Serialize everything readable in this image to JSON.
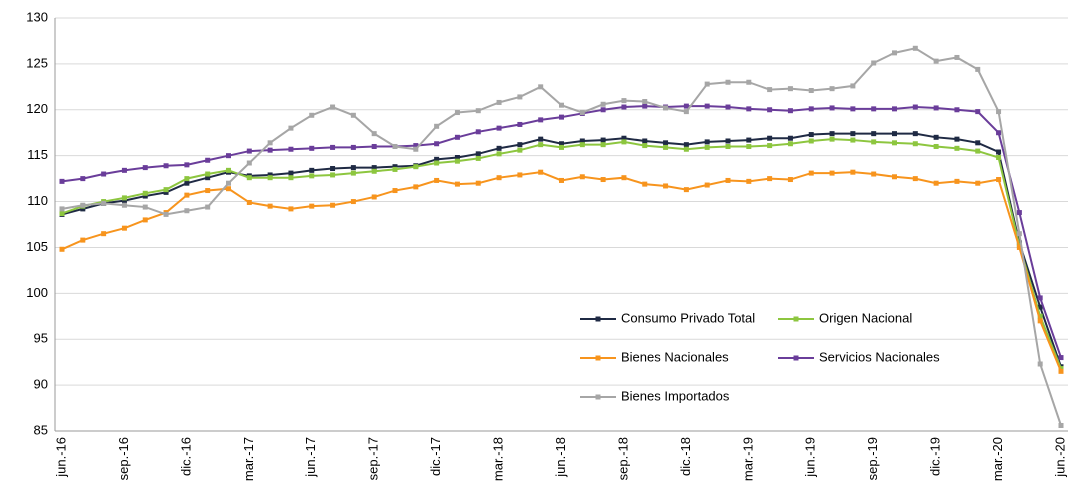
{
  "chart_data": {
    "type": "line",
    "categories": [
      "jun.-16",
      null,
      null,
      "sep.-16",
      null,
      null,
      "dic.-16",
      null,
      null,
      "mar.-17",
      null,
      null,
      "jun.-17",
      null,
      null,
      "sep.-17",
      null,
      null,
      "dic.-17",
      null,
      null,
      "mar.-18",
      null,
      null,
      "jun.-18",
      null,
      null,
      "sep.-18",
      null,
      null,
      "dic.-18",
      null,
      null,
      "mar.-19",
      null,
      null,
      "jun.-19",
      null,
      null,
      "sep.-19",
      null,
      null,
      "dic.-19",
      null,
      null,
      "mar.-20",
      null,
      null,
      "jun.-20"
    ],
    "series": [
      {
        "name": "Consumo Privado Total",
        "color": "#1f2a44",
        "values": [
          108.6,
          109.2,
          109.8,
          110.1,
          110.6,
          111.0,
          112.0,
          112.6,
          113.2,
          112.8,
          112.9,
          113.1,
          113.4,
          113.6,
          113.7,
          113.7,
          113.8,
          113.9,
          114.6,
          114.8,
          115.2,
          115.8,
          116.2,
          116.8,
          116.3,
          116.6,
          116.7,
          116.9,
          116.6,
          116.4,
          116.2,
          116.5,
          116.6,
          116.7,
          116.9,
          116.9,
          117.3,
          117.4,
          117.4,
          117.4,
          117.4,
          117.4,
          117.0,
          116.8,
          116.4,
          115.4,
          105.5,
          98.5,
          92.0
        ]
      },
      {
        "name": "Origen Nacional",
        "color": "#8dc63f",
        "values": [
          108.7,
          109.5,
          110.0,
          110.4,
          110.9,
          111.3,
          112.5,
          113.0,
          113.4,
          112.6,
          112.6,
          112.6,
          112.8,
          112.9,
          113.1,
          113.3,
          113.5,
          113.8,
          114.2,
          114.4,
          114.7,
          115.2,
          115.6,
          116.2,
          115.9,
          116.2,
          116.2,
          116.5,
          116.1,
          115.9,
          115.7,
          115.9,
          116.0,
          116.0,
          116.1,
          116.3,
          116.6,
          116.8,
          116.7,
          116.5,
          116.4,
          116.3,
          116.0,
          115.8,
          115.5,
          114.8,
          105.2,
          97.5,
          91.8
        ]
      },
      {
        "name": "Bienes Nacionales",
        "color": "#f7941d",
        "values": [
          104.8,
          105.8,
          106.5,
          107.1,
          108.0,
          108.8,
          110.7,
          111.2,
          111.4,
          109.9,
          109.5,
          109.2,
          109.5,
          109.6,
          110.0,
          110.5,
          111.2,
          111.6,
          112.3,
          111.9,
          112.0,
          112.6,
          112.9,
          113.2,
          112.3,
          112.7,
          112.4,
          112.6,
          111.9,
          111.7,
          111.3,
          111.8,
          112.3,
          112.2,
          112.5,
          112.4,
          113.1,
          113.1,
          113.2,
          113.0,
          112.7,
          112.5,
          112.0,
          112.2,
          112.0,
          112.4,
          105.0,
          97.0,
          91.5
        ]
      },
      {
        "name": "Servicios Nacionales",
        "color": "#6a3d9a",
        "values": [
          112.2,
          112.5,
          113.0,
          113.4,
          113.7,
          113.9,
          114.0,
          114.5,
          115.0,
          115.5,
          115.6,
          115.7,
          115.8,
          115.9,
          115.9,
          116.0,
          116.0,
          116.1,
          116.3,
          117.0,
          117.6,
          118.0,
          118.4,
          118.9,
          119.2,
          119.6,
          120.0,
          120.3,
          120.4,
          120.3,
          120.4,
          120.4,
          120.3,
          120.1,
          120.0,
          119.9,
          120.1,
          120.2,
          120.1,
          120.1,
          120.1,
          120.3,
          120.2,
          120.0,
          119.8,
          117.5,
          108.8,
          99.5,
          93.0
        ]
      },
      {
        "name": "Bienes Importados",
        "color": "#a6a6a6",
        "values": [
          109.2,
          109.6,
          109.8,
          109.6,
          109.4,
          108.6,
          109.0,
          109.4,
          112.0,
          114.2,
          116.4,
          118.0,
          119.4,
          120.3,
          119.4,
          117.4,
          116.0,
          115.7,
          118.2,
          119.7,
          119.9,
          120.8,
          121.4,
          122.5,
          120.5,
          119.7,
          120.6,
          121.0,
          120.9,
          120.2,
          119.8,
          122.8,
          123.0,
          123.0,
          122.2,
          122.3,
          122.1,
          122.3,
          122.6,
          125.1,
          126.2,
          126.7,
          125.3,
          125.7,
          124.4,
          119.8,
          106.5,
          92.3,
          85.6
        ]
      }
    ],
    "ylim": [
      85,
      130
    ],
    "yticks": [
      85,
      90,
      95,
      100,
      105,
      110,
      115,
      120,
      125,
      130
    ],
    "grid": true
  }
}
